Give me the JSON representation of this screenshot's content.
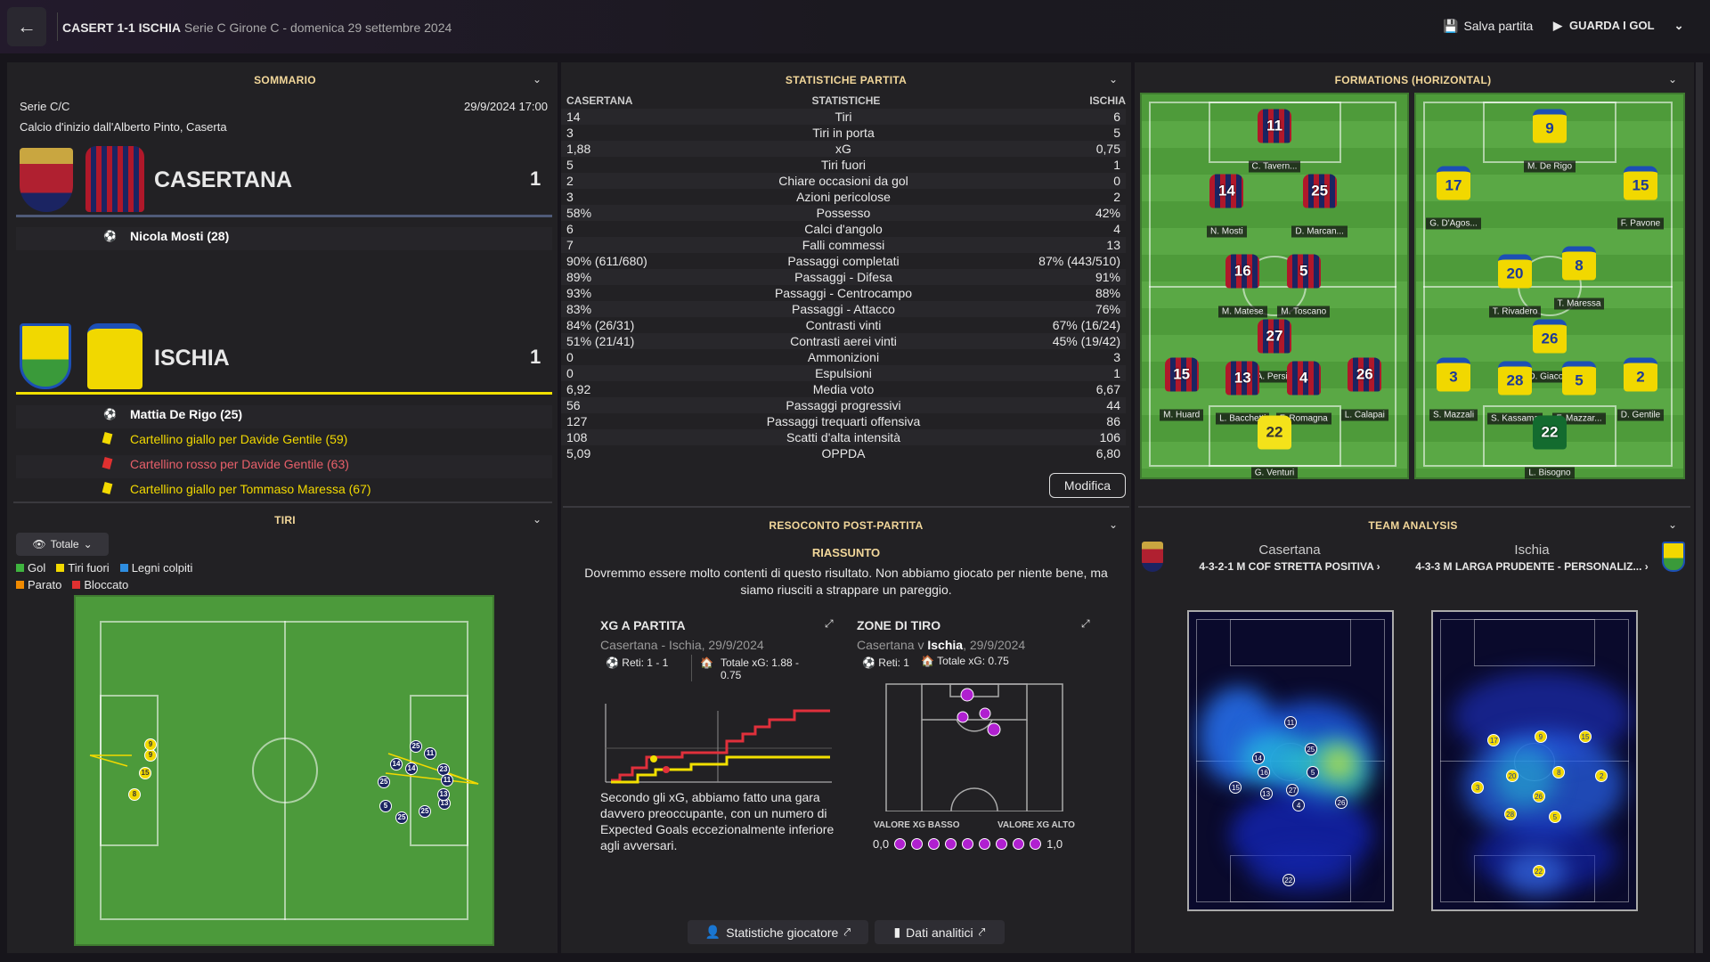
{
  "topbar": {
    "score": "CASERT 1-1 ISCHIA",
    "subtitle": "Serie C Girone C - domenica 29 settembre 2024",
    "save": "Salva partita",
    "goals": "GUARDA I GOL"
  },
  "summary": {
    "title": "SOMMARIO",
    "competition": "Serie C/C",
    "datetime": "29/9/2024 17:00",
    "kickoff": "Calcio d'inizio dall'Alberto Pinto, Caserta",
    "home": {
      "name": "CASERTANA",
      "score": "1",
      "events": [
        {
          "icon": "ball-icon",
          "text": "Nicola Mosti (28)"
        }
      ]
    },
    "away": {
      "name": "ISCHIA",
      "score": "1",
      "events": [
        {
          "icon": "ball-icon",
          "text": "Mattia De Rigo (25)"
        },
        {
          "icon": "yellow-card-icon",
          "text": "Cartellino giallo per Davide Gentile (59)"
        },
        {
          "icon": "red-card-icon",
          "text": "Cartellino rosso per Davide Gentile (63)"
        },
        {
          "icon": "yellow-card-icon",
          "text": "Cartellino giallo per Tommaso Maressa (67)"
        }
      ]
    }
  },
  "shots": {
    "title": "TIRI",
    "filter": "Totale",
    "legend": [
      "Gol",
      "Tiri fuori",
      "Legni colpiti",
      "Parato",
      "Bloccato"
    ],
    "legend_colors": [
      "#3fb43f",
      "#f2d900",
      "#2e8de0",
      "#f08a00",
      "#e03030"
    ],
    "markers": [
      "15",
      "9",
      "8",
      "9",
      "14",
      "25",
      "11",
      "14",
      "23",
      "11",
      "25",
      "5",
      "13",
      "25",
      "25",
      "13"
    ]
  },
  "stats": {
    "title": "STATISTICHE PARTITA",
    "col_home": "CASERTANA",
    "col_label": "STATISTICHE",
    "col_away": "ISCHIA",
    "edit": "Modifica",
    "rows": [
      [
        "14",
        "Tiri",
        "6"
      ],
      [
        "3",
        "Tiri in porta",
        "5"
      ],
      [
        "1,88",
        "xG",
        "0,75"
      ],
      [
        "5",
        "Tiri fuori",
        "1"
      ],
      [
        "2",
        "Chiare occasioni da gol",
        "0"
      ],
      [
        "3",
        "Azioni pericolose",
        "2"
      ],
      [
        "58%",
        "Possesso",
        "42%"
      ],
      [
        "6",
        "Calci d'angolo",
        "4"
      ],
      [
        "7",
        "Falli commessi",
        "13"
      ],
      [
        "90% (611/680)",
        "Passaggi completati",
        "87% (443/510)"
      ],
      [
        "89%",
        "Passaggi - Difesa",
        "91%"
      ],
      [
        "93%",
        "Passaggi - Centrocampo",
        "88%"
      ],
      [
        "83%",
        "Passaggi - Attacco",
        "76%"
      ],
      [
        "84% (26/31)",
        "Contrasti vinti",
        "67% (16/24)"
      ],
      [
        "51% (21/41)",
        "Contrasti aerei vinti",
        "45% (19/42)"
      ],
      [
        "0",
        "Ammonizioni",
        "3"
      ],
      [
        "0",
        "Espulsioni",
        "1"
      ],
      [
        "6,92",
        "Media voto",
        "6,67"
      ],
      [
        "56",
        "Passaggi progressivi",
        "44"
      ],
      [
        "127",
        "Passaggi trequarti offensiva",
        "86"
      ],
      [
        "108",
        "Scatti d'alta intensità",
        "106"
      ],
      [
        "5,09",
        "OPPDA",
        "6,80"
      ]
    ]
  },
  "formations": {
    "title": "FORMATIONS (HORIZONTAL)",
    "home": [
      [
        "11",
        "C. Tavern..."
      ],
      [
        "14",
        "N. Mosti"
      ],
      [
        "25",
        "D. Marcan..."
      ],
      [
        "16",
        "M. Matese"
      ],
      [
        "5",
        "M. Toscano"
      ],
      [
        "27",
        "A. Persia"
      ],
      [
        "15",
        "M. Huard"
      ],
      [
        "13",
        "L. Bacchetti"
      ],
      [
        "4",
        "F. Romagna"
      ],
      [
        "26",
        "L. Calapai"
      ],
      [
        "22",
        "G. Venturi"
      ]
    ],
    "away": [
      [
        "9",
        "M. De Rigo"
      ],
      [
        "17",
        "G. D'Agos..."
      ],
      [
        "15",
        "F. Pavone"
      ],
      [
        "20",
        "T. Rivadero"
      ],
      [
        "8",
        "T. Maressa"
      ],
      [
        "26",
        "D. Giaco..."
      ],
      [
        "3",
        "S. Mazzali"
      ],
      [
        "28",
        "S. Kassama"
      ],
      [
        "5",
        "F. Mazzar..."
      ],
      [
        "2",
        "D. Gentile"
      ],
      [
        "22",
        "L. Bisogno"
      ]
    ]
  },
  "report": {
    "title": "RESOCONTO POST-PARTITA",
    "subtitle": "RIASSUNTO",
    "text": "Dovremmo essere molto contenti di questo risultato. Non abbiamo giocato per niente bene, ma siamo riusciti a strappare un pareggio.",
    "xg": {
      "title": "XG A PARTITA",
      "match": "Casertana - Ischia, 29/9/2024",
      "goals": "Reti: 1 - 1",
      "total": "Totale xG: 1.88 - 0.75",
      "comment": "Secondo gli xG, abbiamo fatto una gara davvero preoccupante, con un numero di Expected Goals eccezionalmente inferiore agli avversari."
    },
    "zones": {
      "title": "ZONE DI TIRO",
      "match_home": "Casertana v ",
      "match_away": "Ischia",
      "match_date": ", 29/9/2024",
      "goals": "Reti: 1",
      "total": "Totale xG: 0.75",
      "low": "VALORE XG BASSO",
      "high": "VALORE XG ALTO",
      "min": "0,0",
      "max": "1,0"
    },
    "player_stats": "Statistiche giocatore",
    "analytics": "Dati analitici"
  },
  "analysis": {
    "title": "TEAM ANALYSIS",
    "home": "Casertana",
    "home_formation": "4-3-2-1 M COF STRETTA POSITIVA",
    "away": "Ischia",
    "away_formation": "4-3-3 M LARGA PRUDENTE - PERSONALIZ...",
    "home_numbers": [
      "11",
      "25",
      "14",
      "16",
      "5",
      "15",
      "13",
      "27",
      "4",
      "26",
      "22"
    ],
    "away_numbers": [
      "17",
      "9",
      "15",
      "20",
      "8",
      "2",
      "3",
      "26",
      "28",
      "5",
      "22"
    ]
  }
}
